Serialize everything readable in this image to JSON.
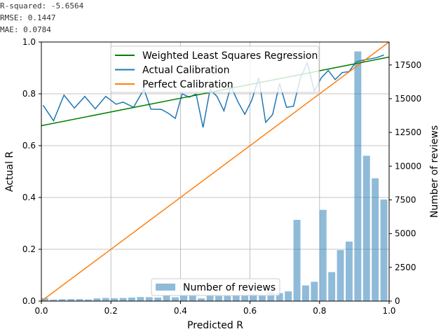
{
  "stats": {
    "r_squared": "R-squared: -5.6564",
    "rmse": "RMSE: 0.1447",
    "mae": "MAE: 0.0784"
  },
  "chart_data": {
    "type": "bar+line",
    "xlabel": "Predicted R",
    "ylabel": "Actual R",
    "y2label": "Number of reviews",
    "xlim": [
      0,
      1
    ],
    "ylim": [
      0,
      1
    ],
    "y2lim": [
      0,
      19200
    ],
    "x_ticks": [
      "0.0",
      "0.2",
      "0.4",
      "0.6",
      "0.8",
      "1.0"
    ],
    "x_tick_values": [
      0,
      0.2,
      0.4,
      0.6,
      0.8,
      1.0
    ],
    "y_ticks": [
      "0.0",
      "0.2",
      "0.4",
      "0.6",
      "0.8",
      "1.0"
    ],
    "y_tick_values": [
      0,
      0.2,
      0.4,
      0.6,
      0.8,
      1.0
    ],
    "y2_ticks": [
      "0",
      "2500",
      "5000",
      "7500",
      "10000",
      "12500",
      "15000",
      "17500"
    ],
    "y2_tick_values": [
      0,
      2500,
      5000,
      7500,
      10000,
      12500,
      15000,
      17500
    ],
    "grid": true,
    "legend_top": [
      "Weighted Least Squares Regression",
      "Actual Calibration",
      "Perfect Calibration"
    ],
    "legend_bottom": "Number of reviews",
    "colors": {
      "regression": "#008000",
      "actual": "#1f77b4",
      "perfect": "#ff7f0e",
      "bars": "#1f77b4"
    },
    "regression": {
      "x": [
        0,
        1
      ],
      "y": [
        0.677,
        0.942
      ]
    },
    "perfect": {
      "x": [
        0,
        1
      ],
      "y": [
        0,
        1
      ]
    },
    "actual_calibration": {
      "x": [
        0.005,
        0.035,
        0.065,
        0.095,
        0.125,
        0.155,
        0.185,
        0.215,
        0.235,
        0.265,
        0.295,
        0.315,
        0.345,
        0.365,
        0.385,
        0.405,
        0.425,
        0.445,
        0.465,
        0.485,
        0.505,
        0.525,
        0.545,
        0.565,
        0.585,
        0.605,
        0.625,
        0.645,
        0.665,
        0.685,
        0.705,
        0.725,
        0.745,
        0.765,
        0.785,
        0.805,
        0.825,
        0.845,
        0.865,
        0.885,
        0.905,
        0.925,
        0.945,
        0.965,
        0.985
      ],
      "y": [
        0.756,
        0.696,
        0.795,
        0.745,
        0.79,
        0.742,
        0.79,
        0.76,
        0.768,
        0.748,
        0.818,
        0.741,
        0.74,
        0.725,
        0.705,
        0.8,
        0.787,
        0.799,
        0.67,
        0.817,
        0.79,
        0.734,
        0.83,
        0.77,
        0.721,
        0.775,
        0.862,
        0.69,
        0.72,
        0.84,
        0.748,
        0.752,
        0.862,
        0.92,
        0.81,
        0.862,
        0.89,
        0.855,
        0.882,
        0.886,
        0.924,
        0.93,
        0.935,
        0.94,
        0.95
      ]
    },
    "bars": {
      "x": [
        0.01,
        0.035,
        0.06,
        0.085,
        0.11,
        0.135,
        0.16,
        0.185,
        0.21,
        0.235,
        0.26,
        0.285,
        0.31,
        0.335,
        0.36,
        0.385,
        0.41,
        0.435,
        0.46,
        0.485,
        0.51,
        0.535,
        0.56,
        0.585,
        0.61,
        0.635,
        0.66,
        0.685,
        0.71,
        0.735,
        0.76,
        0.785,
        0.81,
        0.835,
        0.86,
        0.885,
        0.91,
        0.935,
        0.96,
        0.985
      ],
      "values": [
        220,
        110,
        140,
        150,
        150,
        120,
        200,
        230,
        210,
        230,
        260,
        300,
        290,
        260,
        420,
        280,
        410,
        420,
        200,
        400,
        380,
        380,
        440,
        430,
        510,
        430,
        680,
        590,
        720,
        6020,
        1160,
        1430,
        6760,
        2150,
        3780,
        4410,
        18500,
        10770,
        9100,
        7530
      ],
      "width": 0.02
    }
  }
}
